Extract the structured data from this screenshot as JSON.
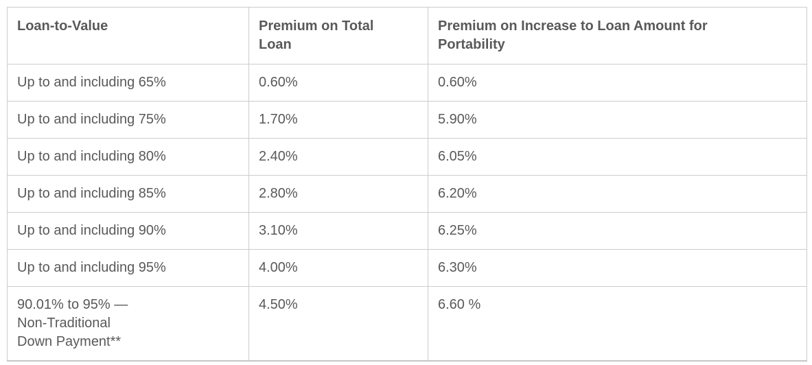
{
  "colors": {
    "text": "#58595b",
    "border": "#cccccc",
    "background": "#ffffff"
  },
  "table": {
    "columns": [
      {
        "label": "Loan-to-Value"
      },
      {
        "label": "Premium on Total\nLoan"
      },
      {
        "label": "Premium on Increase to Loan Amount for\nPortability"
      }
    ],
    "rows": [
      {
        "ltv": "Up to and including 65%",
        "premium_total": "0.60%",
        "premium_increase": "0.60%"
      },
      {
        "ltv": "Up to and including 75%",
        "premium_total": "1.70%",
        "premium_increase": "5.90%"
      },
      {
        "ltv": "Up to and including 80%",
        "premium_total": "2.40%",
        "premium_increase": "6.05%"
      },
      {
        "ltv": "Up to and including 85%",
        "premium_total": "2.80%",
        "premium_increase": "6.20%"
      },
      {
        "ltv": "Up to and including 90%",
        "premium_total": "3.10%",
        "premium_increase": "6.25%"
      },
      {
        "ltv": "Up to and including 95%",
        "premium_total": "4.00%",
        "premium_increase": "6.30%"
      },
      {
        "ltv": "90.01% to 95% —\nNon-Traditional\nDown Payment**",
        "premium_total": "4.50%",
        "premium_increase": "6.60 %"
      }
    ]
  }
}
